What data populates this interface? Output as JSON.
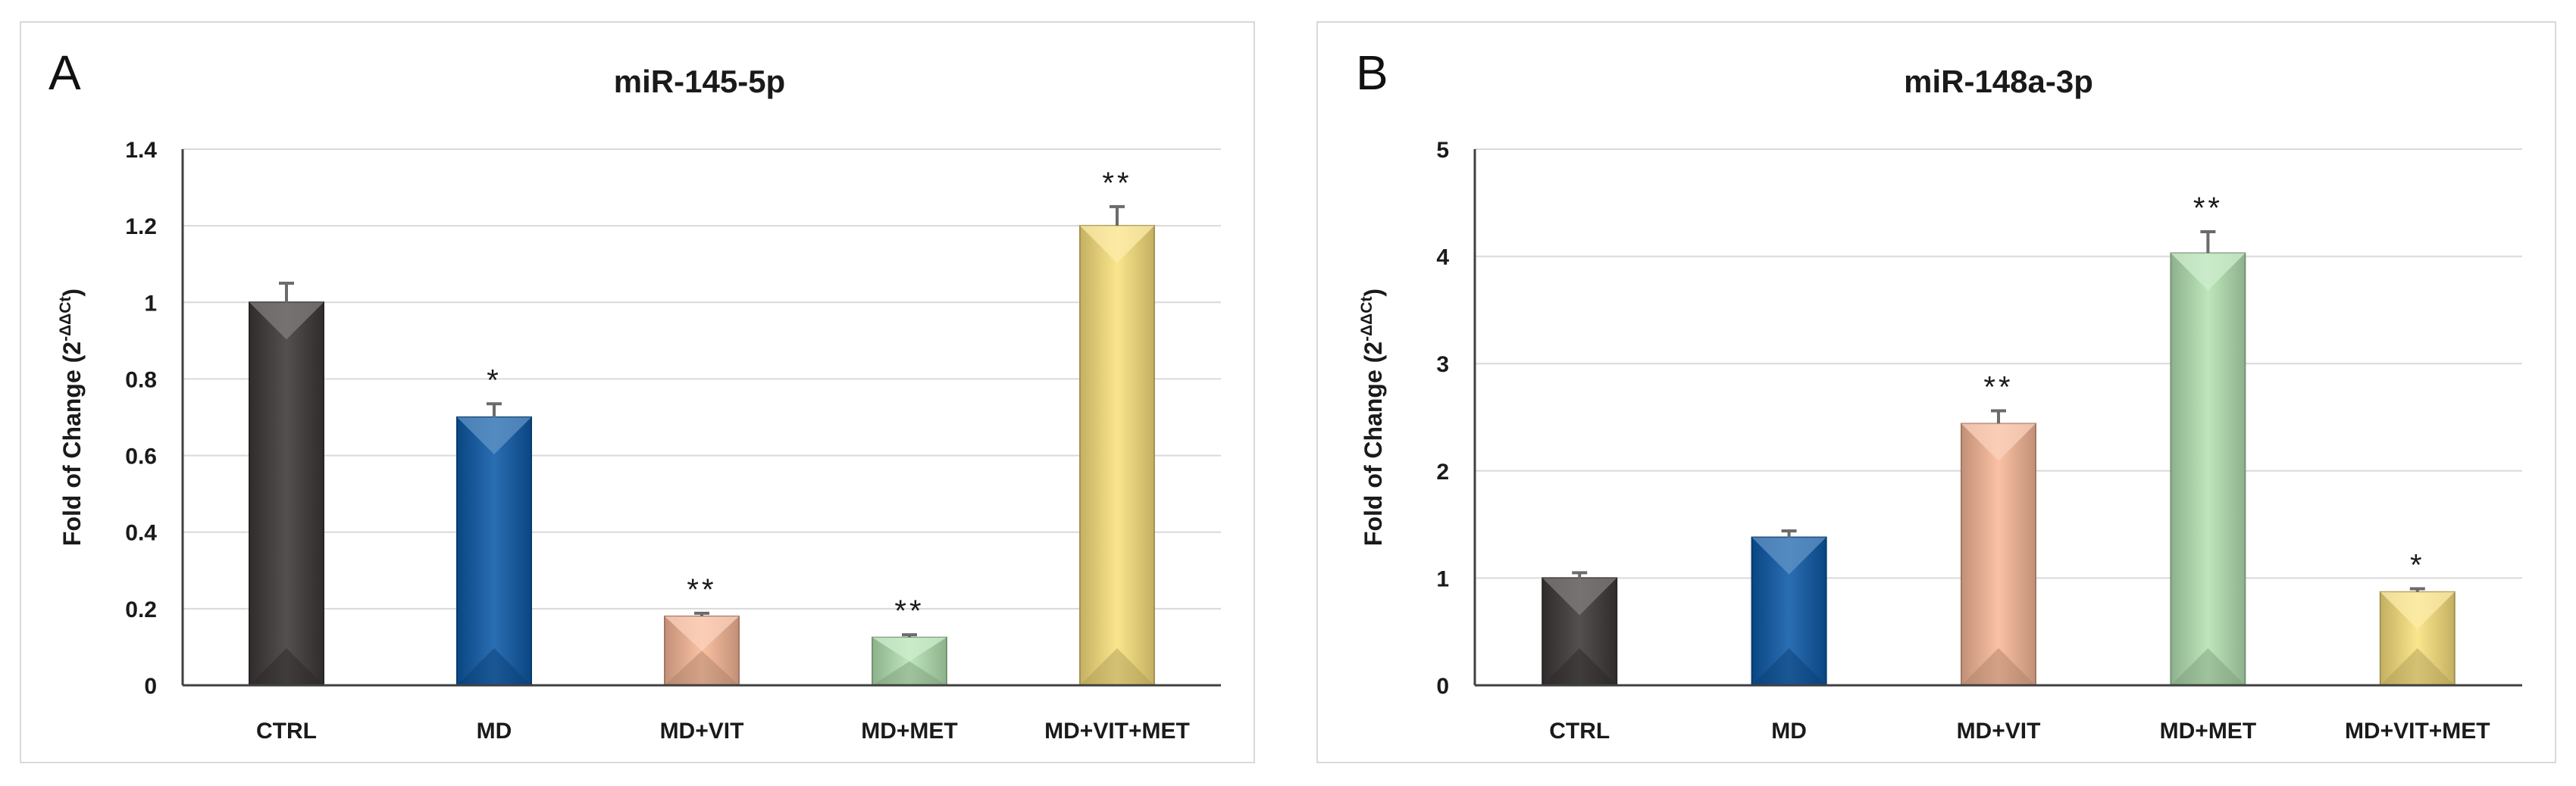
{
  "chart_data": [
    {
      "panel_label": "A",
      "type": "bar",
      "title": "miR-145-5p",
      "ylabel": "Fold of Change (2",
      "ylabel_sup": "-ΔΔCt",
      "ylabel_close": ")",
      "xlabel": "",
      "categories": [
        "CTRL",
        "MD",
        "MD+VIT",
        "MD+MET",
        "MD+VIT+MET"
      ],
      "values": [
        1.0,
        0.7,
        0.18,
        0.125,
        1.2
      ],
      "errors": [
        0.05,
        0.035,
        0.008,
        0.007,
        0.05
      ],
      "significance": [
        "",
        "*",
        "**",
        "**",
        "**"
      ],
      "ylim": [
        0,
        1.4
      ],
      "yticks": [
        0,
        0.2,
        0.4,
        0.6,
        0.8,
        1,
        1.2,
        1.4
      ],
      "ytick_labels": [
        "0",
        "0.2",
        "0.4",
        "0.6",
        "0.8",
        "1",
        "1.2",
        "1.4"
      ],
      "grid": true,
      "colors": [
        "#3d3838",
        "#0d5aa8",
        "#f9b898",
        "#b5e3b3",
        "#fbe27e"
      ]
    },
    {
      "panel_label": "B",
      "type": "bar",
      "title": "miR-148a-3p",
      "ylabel": "Fold of Change (2",
      "ylabel_sup": "-ΔΔCt",
      "ylabel_close": ")",
      "xlabel": "",
      "categories": [
        "CTRL",
        "MD",
        "MD+VIT",
        "MD+MET",
        "MD+VIT+MET"
      ],
      "values": [
        1.0,
        1.38,
        2.44,
        4.03,
        0.87
      ],
      "errors": [
        0.05,
        0.06,
        0.12,
        0.2,
        0.03
      ],
      "significance": [
        "",
        "",
        "**",
        "**",
        "*"
      ],
      "ylim": [
        0,
        5
      ],
      "yticks": [
        0,
        1,
        2,
        3,
        4,
        5
      ],
      "ytick_labels": [
        "0",
        "1",
        "2",
        "3",
        "4",
        "5"
      ],
      "grid": true,
      "colors": [
        "#3d3838",
        "#0d5aa8",
        "#f9b898",
        "#b5e3b3",
        "#fbe27e"
      ]
    }
  ]
}
